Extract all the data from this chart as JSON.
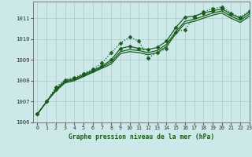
{
  "title": "Graphe pression niveau de la mer (hPa)",
  "bg_color": "#cce8e8",
  "grid_color": "#aacccc",
  "line_color": "#1a5c1a",
  "xlim": [
    -0.5,
    23
  ],
  "ylim": [
    1006.0,
    1011.8
  ],
  "yticks": [
    1006,
    1007,
    1008,
    1009,
    1010,
    1011
  ],
  "xticks": [
    0,
    1,
    2,
    3,
    4,
    5,
    6,
    7,
    8,
    9,
    10,
    11,
    12,
    13,
    14,
    15,
    16,
    17,
    18,
    19,
    20,
    21,
    22,
    23
  ],
  "series": [
    {
      "x": [
        0,
        1,
        2,
        3,
        4,
        5,
        6,
        7,
        8,
        9,
        10,
        11,
        12,
        13,
        14,
        15,
        16,
        17,
        18,
        19,
        20,
        21,
        22,
        23
      ],
      "y": [
        1006.4,
        1007.0,
        1007.7,
        1008.05,
        1008.15,
        1008.35,
        1008.55,
        1008.85,
        1009.35,
        1009.8,
        1010.1,
        1009.9,
        1009.1,
        1009.35,
        1009.55,
        1010.35,
        1010.45,
        1011.05,
        1011.3,
        1011.45,
        1011.55,
        1011.25,
        1011.05,
        1011.35
      ],
      "style": "dotted",
      "marker": "D",
      "markersize": 2.5
    },
    {
      "x": [
        0,
        1,
        2,
        3,
        4,
        5,
        6,
        7,
        8,
        9,
        10,
        11,
        12,
        13,
        14,
        15,
        16,
        17,
        18,
        19,
        20,
        21,
        22,
        23
      ],
      "y": [
        1006.4,
        1007.0,
        1007.6,
        1008.0,
        1008.1,
        1008.3,
        1008.5,
        1008.7,
        1009.0,
        1009.55,
        1009.65,
        1009.55,
        1009.5,
        1009.6,
        1009.9,
        1010.55,
        1011.05,
        1011.1,
        1011.25,
        1011.35,
        1011.45,
        1011.2,
        1011.0,
        1011.3
      ],
      "style": "solid",
      "marker": "D",
      "markersize": 2.5
    },
    {
      "x": [
        0,
        1,
        2,
        3,
        4,
        5,
        6,
        7,
        8,
        9,
        10,
        11,
        12,
        13,
        14,
        15,
        16,
        17,
        18,
        19,
        20,
        21,
        22,
        23
      ],
      "y": [
        1006.4,
        1007.0,
        1007.55,
        1007.95,
        1008.05,
        1008.25,
        1008.45,
        1008.65,
        1008.9,
        1009.4,
        1009.5,
        1009.45,
        1009.35,
        1009.45,
        1009.75,
        1010.35,
        1010.85,
        1010.95,
        1011.1,
        1011.25,
        1011.35,
        1011.1,
        1010.9,
        1011.2
      ],
      "style": "solid",
      "marker": null,
      "markersize": 0
    },
    {
      "x": [
        0,
        1,
        2,
        3,
        4,
        5,
        6,
        7,
        8,
        9,
        10,
        11,
        12,
        13,
        14,
        15,
        16,
        17,
        18,
        19,
        20,
        21,
        22,
        23
      ],
      "y": [
        1006.4,
        1007.0,
        1007.5,
        1007.9,
        1008.0,
        1008.2,
        1008.4,
        1008.6,
        1008.8,
        1009.3,
        1009.4,
        1009.35,
        1009.25,
        1009.35,
        1009.65,
        1010.25,
        1010.75,
        1010.85,
        1011.0,
        1011.15,
        1011.25,
        1011.0,
        1010.8,
        1011.1
      ],
      "style": "solid",
      "marker": null,
      "markersize": 0
    }
  ]
}
